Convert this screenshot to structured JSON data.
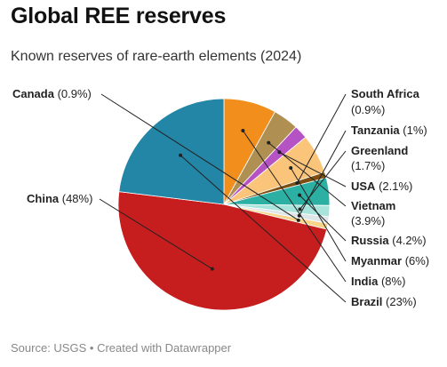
{
  "title": "Global REE reserves",
  "subtitle": "Known reserves of rare-earth elements (2024)",
  "footer": {
    "source": "Source: USGS",
    "separator": "•",
    "credit": "Created with Datawrapper"
  },
  "chart_data": {
    "type": "pie",
    "title": "Global REE reserves",
    "subtitle": "Known reserves of rare-earth elements (2024)",
    "slices": [
      {
        "name": "India",
        "value": 8,
        "label": "(8%)",
        "color": "#f28e1c"
      },
      {
        "name": "Vietnam",
        "value": 3.9,
        "label": "(3.9%)",
        "color": "#b08f52"
      },
      {
        "name": "USA",
        "value": 2.1,
        "label": "(2.1%)",
        "color": "#b552c4"
      },
      {
        "name": "Myanmar",
        "value": 6,
        "label": "(6%)",
        "color": "#fac47a"
      },
      {
        "name": "South Africa",
        "value": 0.9,
        "label": "(0.9%)",
        "color": "#7d4f12"
      },
      {
        "name": "Russia",
        "value": 4.2,
        "label": "(4.2%)",
        "color": "#2bb0a3"
      },
      {
        "name": "Greenland",
        "value": 1.7,
        "label": "(1.7%)",
        "color": "#a8e4dc"
      },
      {
        "name": "Tanzania",
        "value": 1,
        "label": "(1%)",
        "color": "#dfe6ea"
      },
      {
        "name": "Canada",
        "value": 0.9,
        "label": "(0.9%)",
        "color": "#f7d48a"
      },
      {
        "name": "China",
        "value": 48,
        "label": "(48%)",
        "color": "#c61e1e"
      },
      {
        "name": "Brazil",
        "value": 23,
        "label": "(23%)",
        "color": "#2386a6"
      }
    ]
  }
}
